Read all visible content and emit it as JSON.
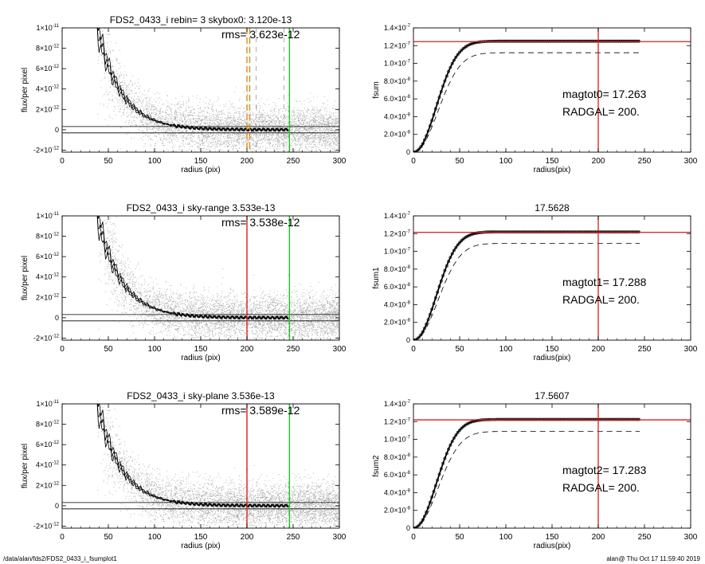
{
  "footer": {
    "left": "/data/alan/fds2/FDS2_0433_i_fsumplot1",
    "right": "alan@  Thu Oct 17 11:59:40 2019"
  },
  "colors": {
    "scatter": "#aaaaaa",
    "profile": "#000000",
    "red": "#d62020",
    "green": "#20c020",
    "orange": "#e08a1e",
    "cumulative": "#000000"
  },
  "chart_data": [
    {
      "type": "scatter",
      "panel": "profile-top",
      "title": "FDS2_0433_i rebin= 3    skybox0:  3.120e-13",
      "annotation": "rms= 3.623e-12",
      "xlabel": "radius (pix)",
      "ylabel": "flux/per pixel",
      "xlim": [
        0,
        300
      ],
      "ylim": [
        -2.2e-12,
        1e-11
      ],
      "xticks": [
        0,
        50,
        100,
        150,
        200,
        250,
        300
      ],
      "yticks": [
        {
          "v": 1e-11,
          "m": "1×10",
          "e": "-11"
        },
        {
          "v": 8e-12,
          "m": "8×10",
          "e": "-12"
        },
        {
          "v": 6e-12,
          "m": "6×10",
          "e": "-12"
        },
        {
          "v": 4e-12,
          "m": "4×10",
          "e": "-12"
        },
        {
          "v": 2e-12,
          "m": "2×10",
          "e": "-12"
        },
        {
          "v": 0,
          "m": "0",
          "e": ""
        },
        {
          "v": -2e-12,
          "m": "-2×10",
          "e": "-12"
        }
      ],
      "profile": {
        "amplitude": 1e-11,
        "scale_pix": 26,
        "start_pix": 38,
        "end_pix": 245
      },
      "hlines": [
        3.1e-13,
        -3.1e-13
      ],
      "vlines": [
        {
          "x": 200,
          "color": "orange",
          "style": "dashed"
        },
        {
          "x": 203,
          "color": "orange",
          "style": "dashed"
        },
        {
          "x": 210,
          "color": "gray",
          "style": "dashed"
        },
        {
          "x": 240,
          "color": "gray",
          "style": "dashed"
        },
        {
          "x": 246,
          "color": "green",
          "style": "solid"
        }
      ]
    },
    {
      "type": "line",
      "panel": "cumulative-top",
      "title": "",
      "annotations": [
        "magtot0=  17.263",
        "RADGAL=    200."
      ],
      "xlabel": "radius(pix)",
      "ylabel": "fsum",
      "xlim": [
        0,
        300
      ],
      "ylim": [
        0,
        1.4e-07
      ],
      "xticks": [
        0,
        50,
        100,
        150,
        200,
        250,
        300
      ],
      "yticks": [
        {
          "v": 1.4e-07,
          "m": "1.4×10",
          "e": "-7"
        },
        {
          "v": 1.2e-07,
          "m": "1.2×10",
          "e": "-7"
        },
        {
          "v": 1e-07,
          "m": "1.0×10",
          "e": "-7"
        },
        {
          "v": 8e-08,
          "m": "8.0×10",
          "e": "-8"
        },
        {
          "v": 6e-08,
          "m": "6.0×10",
          "e": "-8"
        },
        {
          "v": 4e-08,
          "m": "4.0×10",
          "e": "-8"
        },
        {
          "v": 2e-08,
          "m": "2.0×10",
          "e": "-8"
        },
        {
          "v": 0,
          "m": "0",
          "e": ""
        }
      ],
      "series": [
        {
          "style": "solid-thick",
          "total": 1.25e-07,
          "r0": 42,
          "end_pix": 245
        },
        {
          "style": "dashed",
          "total": 1.12e-07,
          "r0": 45,
          "end_pix": 245
        }
      ],
      "hline": 1.245e-07,
      "vline": 200
    },
    {
      "type": "scatter",
      "panel": "profile-middle",
      "title": "FDS2_0433_i sky-range  3.533e-13",
      "annotation": "rms= 3.538e-12",
      "xlabel": "radius (pix)",
      "ylabel": "flux/per pixel",
      "xlim": [
        0,
        300
      ],
      "ylim": [
        -2.2e-12,
        1e-11
      ],
      "xticks": [
        0,
        50,
        100,
        150,
        200,
        250,
        300
      ],
      "yticks": [
        {
          "v": 1e-11,
          "m": "1×10",
          "e": "-11"
        },
        {
          "v": 8e-12,
          "m": "8×10",
          "e": "-12"
        },
        {
          "v": 6e-12,
          "m": "6×10",
          "e": "-12"
        },
        {
          "v": 4e-12,
          "m": "4×10",
          "e": "-12"
        },
        {
          "v": 2e-12,
          "m": "2×10",
          "e": "-12"
        },
        {
          "v": 0,
          "m": "0",
          "e": ""
        },
        {
          "v": -2e-12,
          "m": "-2×10",
          "e": "-12"
        }
      ],
      "profile": {
        "amplitude": 1e-11,
        "scale_pix": 26,
        "start_pix": 38,
        "end_pix": 245
      },
      "hlines": [
        3.1e-13,
        -3.1e-13
      ],
      "vlines": [
        {
          "x": 200,
          "color": "red",
          "style": "solid"
        },
        {
          "x": 246,
          "color": "green",
          "style": "solid"
        }
      ]
    },
    {
      "type": "line",
      "panel": "cumulative-middle",
      "title": "17.5628",
      "annotations": [
        "magtot1=  17.288",
        "RADGAL=    200."
      ],
      "xlabel": "radius(pix)",
      "ylabel": "fsum1",
      "xlim": [
        0,
        300
      ],
      "ylim": [
        0,
        1.4e-07
      ],
      "xticks": [
        0,
        50,
        100,
        150,
        200,
        250,
        300
      ],
      "yticks": [
        {
          "v": 1.4e-07,
          "m": "1.4×10",
          "e": "-7"
        },
        {
          "v": 1.2e-07,
          "m": "1.2×10",
          "e": "-7"
        },
        {
          "v": 1e-07,
          "m": "1.0×10",
          "e": "-7"
        },
        {
          "v": 8e-08,
          "m": "8.0×10",
          "e": "-8"
        },
        {
          "v": 6e-08,
          "m": "6.0×10",
          "e": "-8"
        },
        {
          "v": 4e-08,
          "m": "4.0×10",
          "e": "-8"
        },
        {
          "v": 2e-08,
          "m": "2.0×10",
          "e": "-8"
        },
        {
          "v": 0,
          "m": "0",
          "e": ""
        }
      ],
      "series": [
        {
          "style": "solid-thick",
          "total": 1.22e-07,
          "r0": 42,
          "end_pix": 245
        },
        {
          "style": "dashed",
          "total": 1.09e-07,
          "r0": 45,
          "end_pix": 245
        }
      ],
      "hline": 1.215e-07,
      "vline": 200
    },
    {
      "type": "scatter",
      "panel": "profile-bottom",
      "title": "FDS2_0433_i sky-plane  3.536e-13",
      "annotation": "rms= 3.589e-12",
      "xlabel": "radius (pix)",
      "ylabel": "flux/per pixel",
      "xlim": [
        0,
        300
      ],
      "ylim": [
        -2.2e-12,
        1e-11
      ],
      "xticks": [
        0,
        50,
        100,
        150,
        200,
        250,
        300
      ],
      "yticks": [
        {
          "v": 1e-11,
          "m": "1×10",
          "e": "-11"
        },
        {
          "v": 8e-12,
          "m": "8×10",
          "e": "-12"
        },
        {
          "v": 6e-12,
          "m": "6×10",
          "e": "-12"
        },
        {
          "v": 4e-12,
          "m": "4×10",
          "e": "-12"
        },
        {
          "v": 2e-12,
          "m": "2×10",
          "e": "-12"
        },
        {
          "v": 0,
          "m": "0",
          "e": ""
        },
        {
          "v": -2e-12,
          "m": "-2×10",
          "e": "-12"
        }
      ],
      "profile": {
        "amplitude": 1e-11,
        "scale_pix": 26,
        "start_pix": 38,
        "end_pix": 245
      },
      "hlines": [
        3.1e-13,
        -3.1e-13
      ],
      "vlines": [
        {
          "x": 200,
          "color": "red",
          "style": "solid"
        },
        {
          "x": 246,
          "color": "green",
          "style": "solid"
        }
      ]
    },
    {
      "type": "line",
      "panel": "cumulative-bottom",
      "title": "17.5607",
      "annotations": [
        "magtot2=  17.283",
        "RADGAL=    200."
      ],
      "xlabel": "radius(pix)",
      "ylabel": "fsum2",
      "xlim": [
        0,
        300
      ],
      "ylim": [
        0,
        1.4e-07
      ],
      "xticks": [
        0,
        50,
        100,
        150,
        200,
        250,
        300
      ],
      "yticks": [
        {
          "v": 1.4e-07,
          "m": "1.4×10",
          "e": "-7"
        },
        {
          "v": 1.2e-07,
          "m": "1.2×10",
          "e": "-7"
        },
        {
          "v": 1e-07,
          "m": "1.0×10",
          "e": "-7"
        },
        {
          "v": 8e-08,
          "m": "8.0×10",
          "e": "-8"
        },
        {
          "v": 6e-08,
          "m": "6.0×10",
          "e": "-8"
        },
        {
          "v": 4e-08,
          "m": "4.0×10",
          "e": "-8"
        },
        {
          "v": 2e-08,
          "m": "2.0×10",
          "e": "-8"
        },
        {
          "v": 0,
          "m": "0",
          "e": ""
        }
      ],
      "series": [
        {
          "style": "solid-thick",
          "total": 1.225e-07,
          "r0": 42,
          "end_pix": 245
        },
        {
          "style": "dashed",
          "total": 1.09e-07,
          "r0": 45,
          "end_pix": 245
        }
      ],
      "hline": 1.22e-07,
      "vline": 200
    }
  ]
}
